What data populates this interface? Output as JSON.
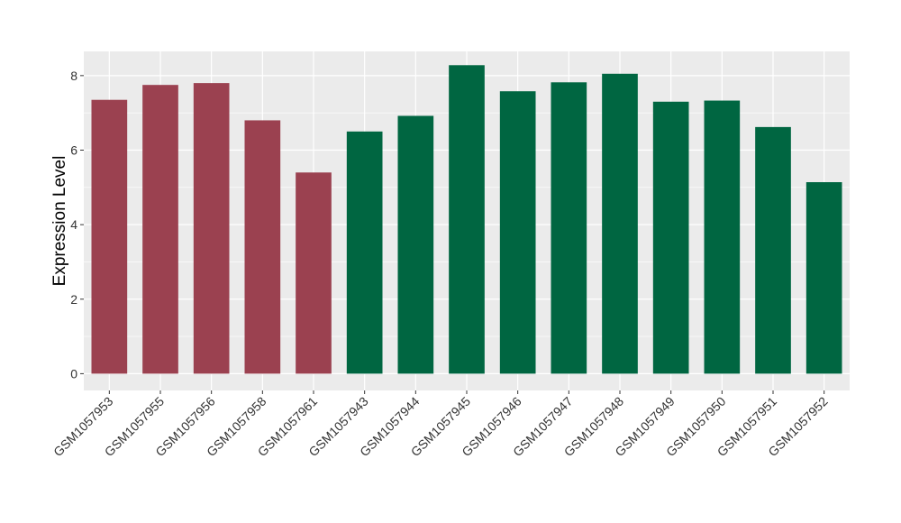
{
  "chart_data": {
    "type": "bar",
    "title": "",
    "xlabel": "",
    "ylabel": "Expression Level",
    "ylim": [
      -0.45,
      8.65
    ],
    "yticks": [
      0,
      2,
      4,
      6,
      8
    ],
    "grid": true,
    "legend": "none",
    "categories": [
      "GSM1057953",
      "GSM1057955",
      "GSM1057956",
      "GSM1057958",
      "GSM1057961",
      "GSM1057943",
      "GSM1057944",
      "GSM1057945",
      "GSM1057946",
      "GSM1057947",
      "GSM1057948",
      "GSM1057949",
      "GSM1057950",
      "GSM1057951",
      "GSM1057952"
    ],
    "values": [
      7.35,
      7.75,
      7.8,
      6.8,
      5.4,
      6.5,
      6.92,
      8.28,
      7.58,
      7.82,
      8.05,
      7.3,
      7.33,
      6.62,
      5.14
    ],
    "groups": [
      0,
      0,
      0,
      0,
      0,
      1,
      1,
      1,
      1,
      1,
      1,
      1,
      1,
      1,
      1
    ],
    "group_colors": [
      "#9b4150",
      "#006641"
    ],
    "panel_color": "#ebebeb",
    "grid_color": "#ffffff"
  }
}
